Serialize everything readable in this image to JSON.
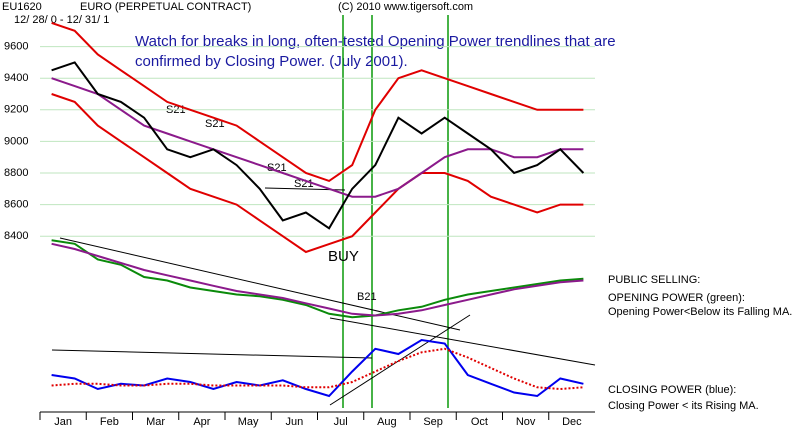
{
  "chart_data": [
    {
      "type": "line",
      "ticker": "EU1620",
      "title": "EURO  (PERPETUAL CONTRACT)",
      "copyright": "(C) 2010 www.tigersoft.com",
      "date_range": "12/ 28/ 0 - 12/ 31/ 1",
      "annotation": "Watch for breaks in long, often-tested Opening Power trendlines that are confirmed by Closing Power. (July 2001).",
      "signals": [
        "BUY",
        "S21",
        "S21",
        "S21",
        "S21"
      ],
      "categories": [
        "Jan",
        null,
        "Feb",
        null,
        "Mar",
        null,
        "Apr",
        null,
        "May",
        null,
        "Jun",
        null,
        "Jul",
        null,
        "Aug",
        null,
        "Sep",
        null,
        "Oct",
        null,
        "Nov",
        null,
        "Dec",
        null
      ],
      "series": [
        {
          "name": "Upper band",
          "color": "#e00000",
          "values": [
            9750,
            9700,
            9550,
            9450,
            9350,
            9250,
            9200,
            9150,
            9100,
            9000,
            8900,
            8800,
            8750,
            8850,
            9200,
            9400,
            9450,
            9400,
            9350,
            9300,
            9250,
            9200,
            9200,
            9200
          ]
        },
        {
          "name": "Lower band",
          "color": "#e00000",
          "values": [
            9300,
            9250,
            9100,
            9000,
            8900,
            8800,
            8700,
            8650,
            8600,
            8500,
            8400,
            8300,
            8350,
            8400,
            8550,
            8700,
            8800,
            8800,
            8750,
            8650,
            8600,
            8550,
            8600,
            8600
          ]
        },
        {
          "name": "Moving average",
          "color": "#8b1a8b",
          "values": [
            9400,
            9350,
            9300,
            9200,
            9100,
            9050,
            9000,
            8950,
            8900,
            8850,
            8800,
            8750,
            8700,
            8650,
            8650,
            8700,
            8800,
            8900,
            8950,
            8950,
            8900,
            8900,
            8950,
            8950
          ]
        },
        {
          "name": "Price",
          "color": "#000000",
          "values": [
            9450,
            9500,
            9300,
            9250,
            9150,
            8950,
            8900,
            8950,
            8850,
            8700,
            8500,
            8550,
            8450,
            8700,
            8850,
            9150,
            9050,
            9150,
            9050,
            8950,
            8800,
            8850,
            8950,
            8800
          ]
        }
      ],
      "ylim": [
        8300,
        9800
      ],
      "yticks": [
        8400,
        8600,
        8800,
        9000,
        9200,
        9400,
        9600
      ],
      "grid": true
    },
    {
      "type": "line",
      "signals": [
        "B21"
      ],
      "notes": [
        "PUBLIC SELLING:",
        "OPENING POWER (green):",
        "Opening Power<Below its Falling MA.",
        "CLOSING POWER (blue):",
        "Closing Power < its Rising MA."
      ],
      "series": [
        {
          "name": "Opening Power",
          "color": "#0a8a0a",
          "values": [
            97,
            95,
            86,
            83,
            76,
            74,
            70,
            68,
            66,
            65,
            63,
            60,
            55,
            53,
            54,
            57,
            59,
            63,
            66,
            68,
            70,
            72,
            74,
            75
          ]
        },
        {
          "name": "Opening Power MA",
          "color": "#8b1a8b",
          "values": [
            95,
            92,
            88,
            84,
            80,
            77,
            74,
            71,
            68,
            66,
            64,
            61,
            58,
            55,
            54,
            55,
            57,
            60,
            63,
            66,
            69,
            71,
            73,
            74
          ]
        },
        {
          "name": "Closing Power",
          "color": "#0000ee",
          "values": [
            20,
            18,
            12,
            15,
            14,
            18,
            16,
            12,
            16,
            14,
            17,
            12,
            8,
            22,
            35,
            32,
            40,
            38,
            20,
            15,
            10,
            8,
            18,
            15
          ]
        },
        {
          "name": "Closing Power MA",
          "color": "#e00000",
          "values": [
            14,
            15,
            15,
            14,
            14,
            15,
            15,
            14,
            14,
            14,
            14,
            13,
            13,
            16,
            22,
            28,
            33,
            35,
            30,
            24,
            18,
            13,
            12,
            13
          ]
        }
      ],
      "ylim": [
        0,
        100
      ]
    }
  ]
}
